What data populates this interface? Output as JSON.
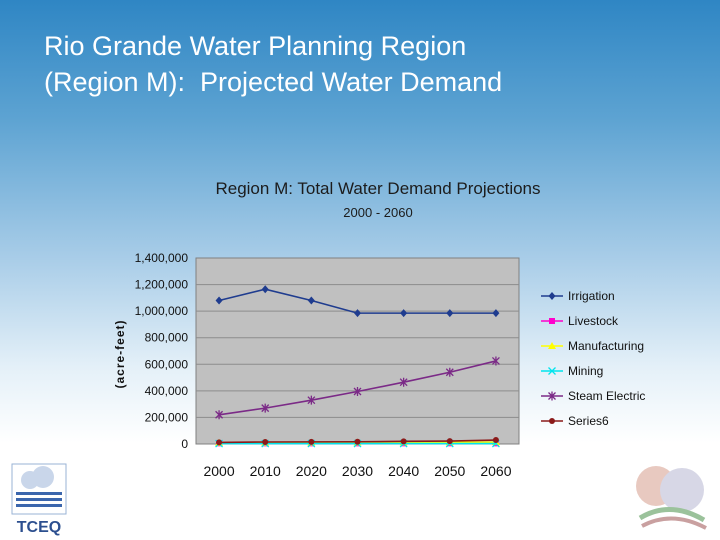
{
  "slide": {
    "title_line1": "Rio Grande Water Planning Region",
    "title_line2": "(Region M):  Projected Water Demand"
  },
  "logos": {
    "left_text": "TCEQ"
  },
  "colors": {
    "plot_bg": "#c0c0c0",
    "irrigation": "#1f3c8f",
    "livestock": "#ff00cc",
    "manufacturing": "#ffff00",
    "mining": "#00e5ee",
    "steam_electric": "#7b2a87",
    "series6": "#8b1a1a"
  },
  "chart_data": {
    "type": "line",
    "title": "Region M:  Total Water Demand Projections",
    "subtitle": "2000 - 2060",
    "xlabel": "",
    "ylabel": "(acre-feet)",
    "categories": [
      "2000",
      "2010",
      "2020",
      "2030",
      "2040",
      "2050",
      "2060"
    ],
    "ylim": [
      0,
      1400000
    ],
    "yticks": [
      0,
      200000,
      400000,
      600000,
      800000,
      1000000,
      1200000,
      1400000
    ],
    "ytick_labels": [
      "0",
      "200,000",
      "400,000",
      "600,000",
      "800,000",
      "1,000,000",
      "1,200,000",
      "1,400,000"
    ],
    "grid": true,
    "legend_position": "right",
    "series": [
      {
        "name": "Irrigation",
        "values": [
          1080000,
          1165000,
          1080000,
          985000,
          985000,
          985000,
          985000
        ],
        "marker": "diamond",
        "color": "#1f3c8f"
      },
      {
        "name": "Livestock",
        "values": [
          5000,
          5000,
          5000,
          5000,
          5000,
          5000,
          5000
        ],
        "marker": "square",
        "color": "#ff00cc"
      },
      {
        "name": "Manufacturing",
        "values": [
          8000,
          9000,
          10000,
          11000,
          12000,
          13000,
          14000
        ],
        "marker": "triangle",
        "color": "#ffff00"
      },
      {
        "name": "Mining",
        "values": [
          3000,
          3000,
          3000,
          3000,
          3000,
          3000,
          3000
        ],
        "marker": "x",
        "color": "#00e5ee"
      },
      {
        "name": "Steam Electric",
        "values": [
          220000,
          270000,
          330000,
          395000,
          465000,
          540000,
          625000
        ],
        "marker": "star",
        "color": "#7b2a87"
      },
      {
        "name": "Series6",
        "values": [
          12000,
          15000,
          16000,
          17000,
          20000,
          22000,
          30000
        ],
        "marker": "circle",
        "color": "#8b1a1a"
      }
    ]
  }
}
